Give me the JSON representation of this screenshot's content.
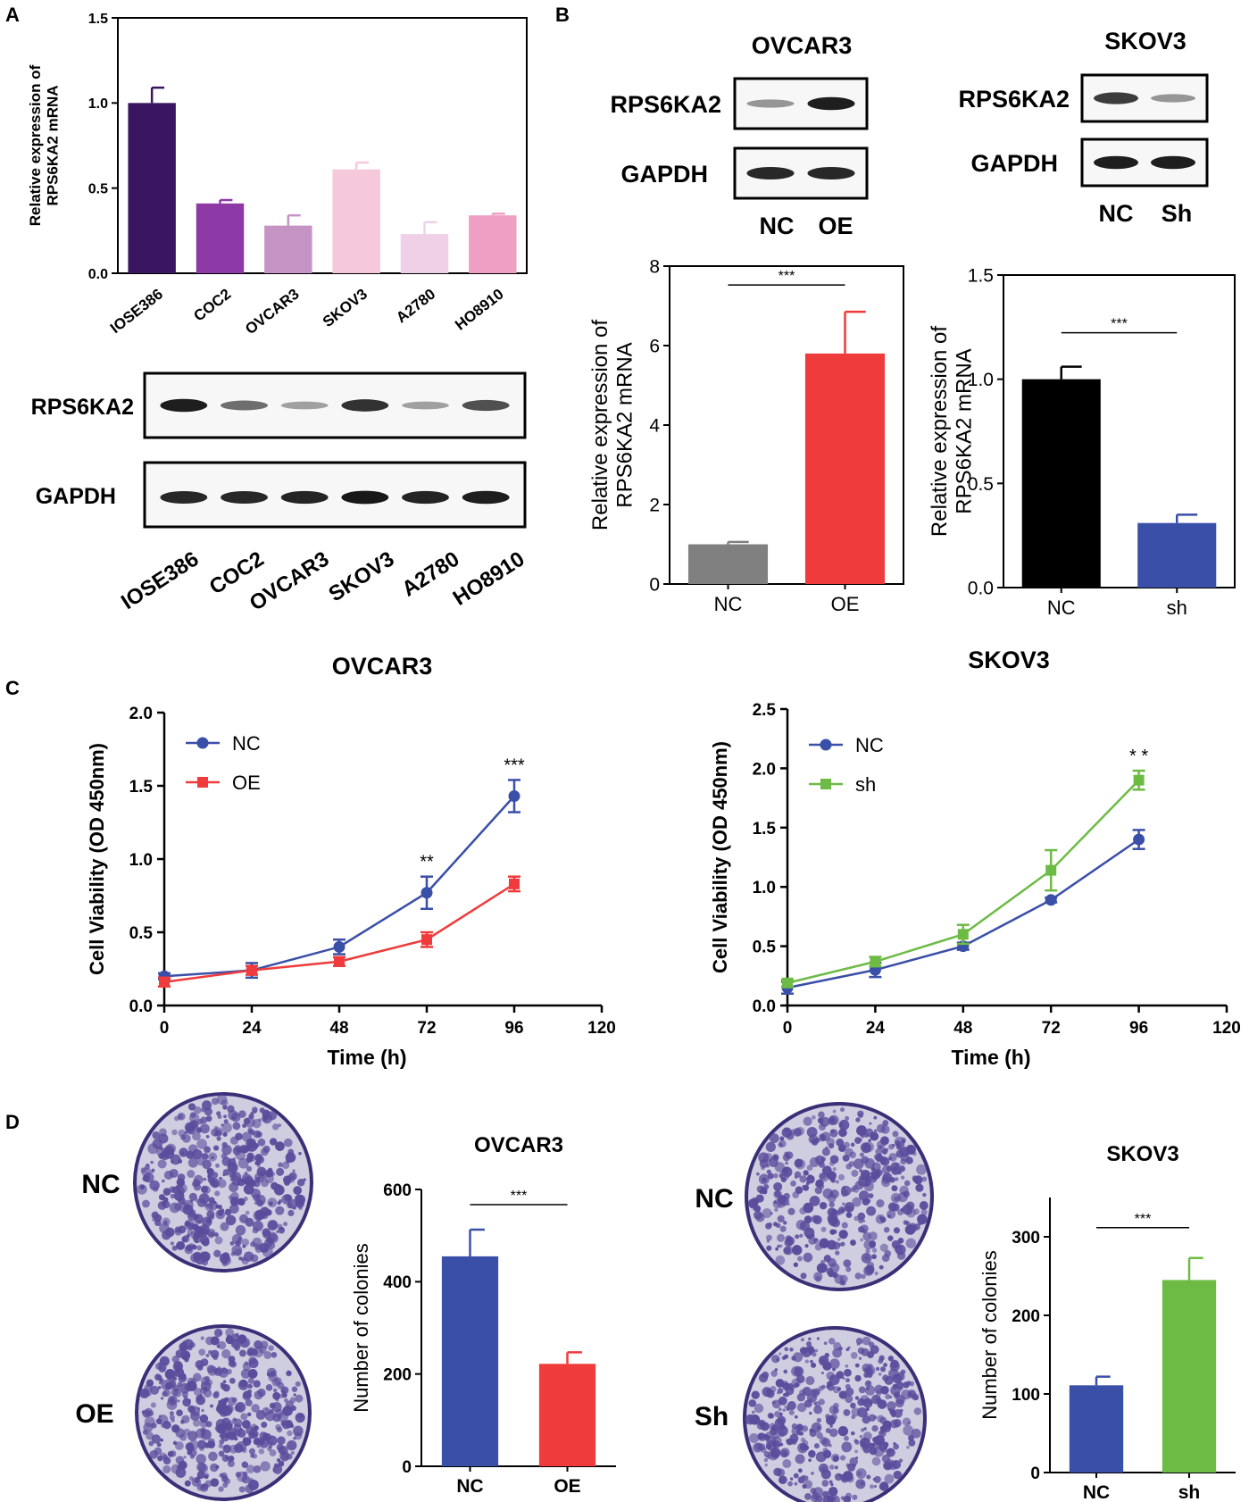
{
  "panels": {
    "A": "A",
    "B": "B",
    "C": "C",
    "D": "D"
  },
  "colors": {
    "purple_dark": "#3a1660",
    "purple": "#8e3aa6",
    "lilac": "#c594c5",
    "pink_light": "#f6c8dc",
    "pink_pale": "#efd0e6",
    "pink": "#ef9ec4",
    "gray": "#808080",
    "red": "#ef3b3b",
    "black": "#000000",
    "blue": "#3a4fa8",
    "green": "#6dbb45",
    "plate": "#5b4c9c"
  },
  "western_A": {
    "rows": [
      "RPS6KA2",
      "GAPDH"
    ],
    "lanes": [
      "IOSE386",
      "COC2",
      "OVCAR3",
      "SKOV3",
      "A2780",
      "HO8910"
    ]
  },
  "western_B_ovcar3": {
    "title": "OVCAR3",
    "rows": [
      "RPS6KA2",
      "GAPDH"
    ],
    "lanes": [
      "NC",
      "OE"
    ]
  },
  "western_B_skov3": {
    "title": "SKOV3",
    "rows": [
      "RPS6KA2",
      "GAPDH"
    ],
    "lanes": [
      "NC",
      "Sh"
    ]
  },
  "plates": {
    "ovcar3_labels": [
      "NC",
      "OE"
    ],
    "skov3_labels": [
      "NC",
      "Sh"
    ]
  },
  "chart_data": [
    {
      "id": "A_bar",
      "type": "bar",
      "categories": [
        "IOSE386",
        "COC2",
        "OVCAR3",
        "SKOV3",
        "A2780",
        "HO8910"
      ],
      "values": [
        1.0,
        0.41,
        0.28,
        0.61,
        0.23,
        0.34
      ],
      "errors": [
        0.09,
        0.02,
        0.06,
        0.04,
        0.07,
        0.01
      ],
      "ylabel": "Relative expression of RPS6KA2 mRNA",
      "ylim": [
        0,
        1.5
      ],
      "yticks": [
        "0.0",
        "0.5",
        "1.0",
        "1.5"
      ]
    },
    {
      "id": "B_ovcar3_bar",
      "type": "bar",
      "categories": [
        "NC",
        "OE"
      ],
      "values": [
        1.0,
        5.8
      ],
      "errors": [
        0.06,
        1.05
      ],
      "ylabel": "Relative expression of RPS6KA2 mRNA",
      "ylim": [
        0,
        8
      ],
      "yticks": [
        "0",
        "2",
        "4",
        "6",
        "8"
      ],
      "significance": "***"
    },
    {
      "id": "B_skov3_bar",
      "type": "bar",
      "categories": [
        "NC",
        "sh"
      ],
      "values": [
        1.0,
        0.31
      ],
      "errors": [
        0.06,
        0.04
      ],
      "ylabel": "Relative expression of RPS6KA2 mRNA",
      "ylim": [
        0,
        1.5
      ],
      "yticks": [
        "0.0",
        "0.5",
        "1.0",
        "1.5"
      ],
      "significance": "***"
    },
    {
      "id": "C_ovcar3_line",
      "type": "line",
      "title": "OVCAR3",
      "x": [
        0,
        24,
        48,
        72,
        96
      ],
      "xlabel": "Time (h)",
      "ylabel": "Cell Viability (OD 450nm)",
      "xlim": [
        0,
        120
      ],
      "xticks": [
        "0",
        "24",
        "48",
        "72",
        "96",
        "120"
      ],
      "ylim": [
        0,
        2.0
      ],
      "yticks": [
        "0.0",
        "0.5",
        "1.0",
        "1.5",
        "2.0"
      ],
      "series": [
        {
          "name": "NC",
          "values": [
            0.2,
            0.24,
            0.4,
            0.77,
            1.43
          ],
          "errors": [
            0.02,
            0.05,
            0.05,
            0.11,
            0.11
          ]
        },
        {
          "name": "OE",
          "values": [
            0.16,
            0.24,
            0.3,
            0.45,
            0.83
          ],
          "errors": [
            0.03,
            0.03,
            0.03,
            0.05,
            0.05
          ]
        }
      ],
      "annotations": [
        {
          "x": 72,
          "text": "**"
        },
        {
          "x": 96,
          "text": "***"
        }
      ]
    },
    {
      "id": "C_skov3_line",
      "type": "line",
      "title": "SKOV3",
      "x": [
        0,
        24,
        48,
        72,
        96
      ],
      "xlabel": "Time (h)",
      "ylabel": "Cell Viability (OD 450nm)",
      "xlim": [
        0,
        120
      ],
      "xticks": [
        "0",
        "24",
        "48",
        "72",
        "96",
        "120"
      ],
      "ylim": [
        0,
        2.5
      ],
      "yticks": [
        "0.0",
        "0.5",
        "1.0",
        "1.5",
        "2.0",
        "2.5"
      ],
      "series": [
        {
          "name": "NC",
          "values": [
            0.15,
            0.3,
            0.5,
            0.89,
            1.4
          ],
          "errors": [
            0.05,
            0.06,
            0.03,
            0.02,
            0.08
          ]
        },
        {
          "name": "sh",
          "values": [
            0.19,
            0.37,
            0.6,
            1.14,
            1.9
          ],
          "errors": [
            0.03,
            0.04,
            0.08,
            0.17,
            0.08
          ]
        }
      ],
      "annotations": [
        {
          "x": 96,
          "text": "* *"
        }
      ]
    },
    {
      "id": "D_ovcar3_bar",
      "type": "bar",
      "title": "OVCAR3",
      "categories": [
        "NC",
        "OE"
      ],
      "values": [
        455,
        222
      ],
      "errors": [
        58,
        25
      ],
      "ylabel": "Number of colonies",
      "ylim": [
        0,
        600
      ],
      "yticks": [
        "0",
        "200",
        "400",
        "600"
      ],
      "significance": "***"
    },
    {
      "id": "D_skov3_bar",
      "type": "bar",
      "title": "SKOV3",
      "categories": [
        "NC",
        "sh"
      ],
      "values": [
        111,
        245
      ],
      "errors": [
        11,
        28
      ],
      "ylabel": "Number of colonies",
      "ylim": [
        0,
        350
      ],
      "yticks": [
        "0",
        "100",
        "200",
        "300"
      ],
      "significance": "***"
    }
  ]
}
